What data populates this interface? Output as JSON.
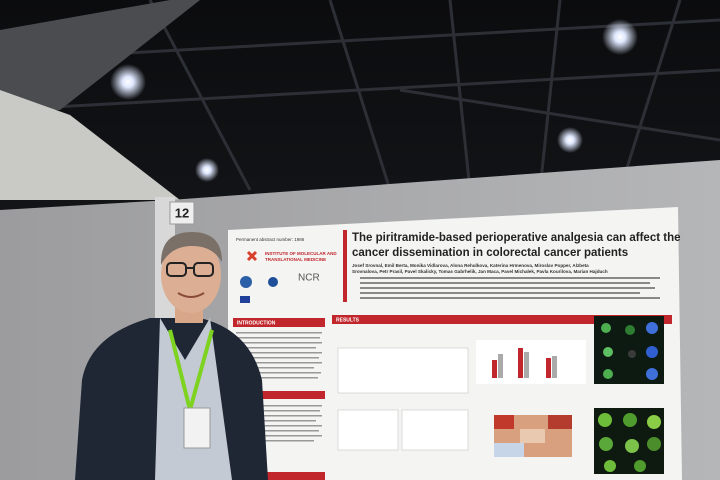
{
  "board": {
    "number": "12"
  },
  "poster": {
    "abstract_number": "Permanent abstract number: 1986",
    "title": [
      "The piritramide-based perioperative analgesia can affect the",
      "cancer dissemination in colorectal cancer patients"
    ],
    "authors": [
      "Josef Srovnal, Emil Berta, Monika Vidlarova, Alona Rehulkova, Katerina Hrmenova, Miroslav Popper, Alzbeta",
      "Srovnalova, Petr Prasil, Pavel Skalicky, Tomas Gabrhelik, Jan Maca, Pavel Michalek, Pavla Kourilova, Marian Hajduch"
    ],
    "institute": [
      "INSTITUTE OF MOLECULAR AND",
      "TRANSLATIONAL MEDICINE"
    ],
    "logo": "NCR",
    "sections": [
      "INTRODUCTION",
      "RESULTS"
    ]
  }
}
